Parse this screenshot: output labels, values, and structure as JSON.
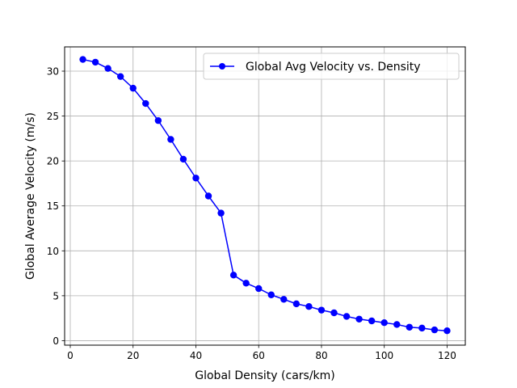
{
  "chart_data": {
    "type": "line",
    "title": "",
    "xlabel": "Global Density (cars/km)",
    "ylabel": "Global Average Velocity (m/s)",
    "xlim": [
      -1.8,
      125.8
    ],
    "ylim": [
      -0.5,
      32.7
    ],
    "xticks": [
      0,
      20,
      40,
      60,
      80,
      100,
      120
    ],
    "yticks": [
      0,
      5,
      10,
      15,
      20,
      25,
      30
    ],
    "grid": true,
    "legend_position": "top-right",
    "series": [
      {
        "name": "Global Avg Velocity vs. Density",
        "color": "#0000ff",
        "marker": "circle",
        "x": [
          4,
          8,
          12,
          16,
          20,
          24,
          28,
          32,
          36,
          40,
          44,
          48,
          52,
          56,
          60,
          64,
          68,
          72,
          76,
          80,
          84,
          88,
          92,
          96,
          100,
          104,
          108,
          112,
          116,
          120
        ],
        "y": [
          31.3,
          31.0,
          30.3,
          29.4,
          28.1,
          26.4,
          24.5,
          22.4,
          20.2,
          18.1,
          16.1,
          14.2,
          7.3,
          6.4,
          5.8,
          5.1,
          4.6,
          4.1,
          3.8,
          3.4,
          3.1,
          2.7,
          2.4,
          2.2,
          2.0,
          1.8,
          1.5,
          1.4,
          1.2,
          1.1
        ]
      }
    ]
  }
}
